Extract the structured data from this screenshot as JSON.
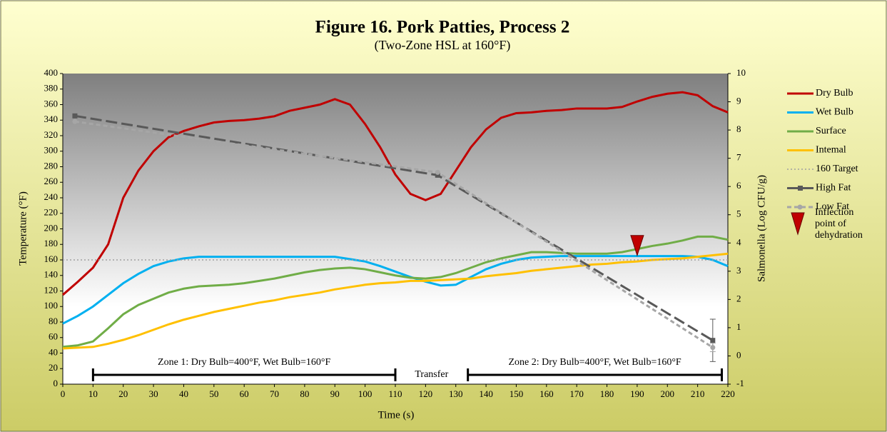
{
  "chart_data": {
    "type": "line",
    "title": "Figure 16. Pork Patties, Process 2",
    "subtitle": "(Two-Zone HSL at 160°F)",
    "x_label": "Time (s)",
    "y_label": "Temperature (°F)",
    "y2_label": "Salmonella (Log CFU/g)",
    "x": [
      0,
      5,
      10,
      15,
      20,
      25,
      30,
      35,
      40,
      45,
      50,
      55,
      60,
      65,
      70,
      75,
      80,
      85,
      90,
      95,
      100,
      105,
      110,
      115,
      120,
      125,
      130,
      135,
      140,
      145,
      150,
      155,
      160,
      165,
      170,
      175,
      180,
      185,
      190,
      195,
      200,
      205,
      210,
      215,
      220
    ],
    "xlim": [
      0,
      220
    ],
    "xticks": [
      0,
      10,
      20,
      30,
      40,
      50,
      60,
      70,
      80,
      90,
      100,
      110,
      120,
      130,
      140,
      150,
      160,
      170,
      180,
      190,
      200,
      210,
      220
    ],
    "ylim": [
      0,
      400
    ],
    "yticks": [
      0,
      20,
      40,
      60,
      80,
      100,
      120,
      140,
      160,
      180,
      200,
      220,
      240,
      260,
      280,
      300,
      320,
      340,
      360,
      380,
      400
    ],
    "y2lim": [
      -1,
      10
    ],
    "y2ticks": [
      -1,
      0,
      1,
      2,
      3,
      4,
      5,
      6,
      7,
      8,
      9,
      10
    ],
    "series": [
      {
        "name": "Dry Bulb",
        "color": "#c00000",
        "values": [
          115,
          132,
          150,
          180,
          240,
          275,
          300,
          318,
          326,
          332,
          337,
          339,
          340,
          342,
          345,
          352,
          356,
          360,
          367,
          360,
          335,
          305,
          270,
          245,
          237,
          245,
          275,
          305,
          328,
          343,
          349,
          350,
          352,
          353,
          355,
          355,
          355,
          357,
          364,
          370,
          374,
          376,
          372,
          358,
          350
        ]
      },
      {
        "name": "Wet Bulb",
        "color": "#00b0f0",
        "values": [
          78,
          88,
          100,
          115,
          130,
          142,
          152,
          158,
          162,
          164,
          164,
          164,
          164,
          164,
          164,
          164,
          164,
          164,
          164,
          161,
          158,
          152,
          145,
          138,
          132,
          127,
          128,
          138,
          148,
          155,
          160,
          163,
          164,
          165,
          165,
          165,
          165,
          165,
          165,
          165,
          165,
          165,
          164,
          160,
          152
        ]
      },
      {
        "name": "Surface",
        "color": "#70ad47",
        "values": [
          48,
          50,
          55,
          72,
          90,
          102,
          110,
          118,
          123,
          126,
          127,
          128,
          130,
          133,
          136,
          140,
          144,
          147,
          149,
          150,
          148,
          144,
          140,
          137,
          136,
          138,
          143,
          150,
          157,
          162,
          166,
          170,
          170,
          169,
          168,
          168,
          168,
          170,
          174,
          178,
          181,
          185,
          190,
          190,
          186
        ]
      },
      {
        "name": "Intemal",
        "color": "#ffc000",
        "values": [
          46,
          47,
          48,
          52,
          57,
          63,
          70,
          77,
          83,
          88,
          93,
          97,
          101,
          105,
          108,
          112,
          115,
          118,
          122,
          125,
          128,
          130,
          131,
          133,
          133,
          134,
          135,
          136,
          139,
          141,
          143,
          146,
          148,
          150,
          152,
          154,
          155,
          157,
          158,
          160,
          161,
          162,
          164,
          166,
          168
        ]
      },
      {
        "name": "160 Target",
        "color": "#a0a0a0",
        "dash": "dotted",
        "x": [
          0,
          220
        ],
        "values": [
          160,
          160
        ]
      },
      {
        "name": "High Fat",
        "color": "#595959",
        "dash": "long",
        "marker": "square",
        "axis": "y2",
        "x": [
          4,
          124,
          215
        ],
        "values": [
          8.5,
          6.4,
          0.55
        ],
        "errors": [
          null,
          null,
          0.75
        ]
      },
      {
        "name": "Low Fat",
        "color": "#a6a6a6",
        "dash": "short",
        "marker": "circle",
        "axis": "y2",
        "x": [
          4,
          124,
          215
        ],
        "values": [
          8.3,
          6.5,
          0.3
        ],
        "errors": [
          null,
          null,
          0.15
        ]
      }
    ],
    "inflection": {
      "label": "Inflection point of dehydration",
      "x": 190,
      "y": 175,
      "color": "#c00000"
    },
    "zones": [
      {
        "label": "Zone 1: Dry Bulb=400°F, Wet Bulb=160°F",
        "start": 10,
        "end": 110
      },
      {
        "label": "Transfer",
        "start": 110,
        "end": 134,
        "bracket": false
      },
      {
        "label": "Zone 2: Dry Bulb=400°F, Wet Bulb=160°F",
        "start": 134,
        "end": 218
      }
    ]
  }
}
